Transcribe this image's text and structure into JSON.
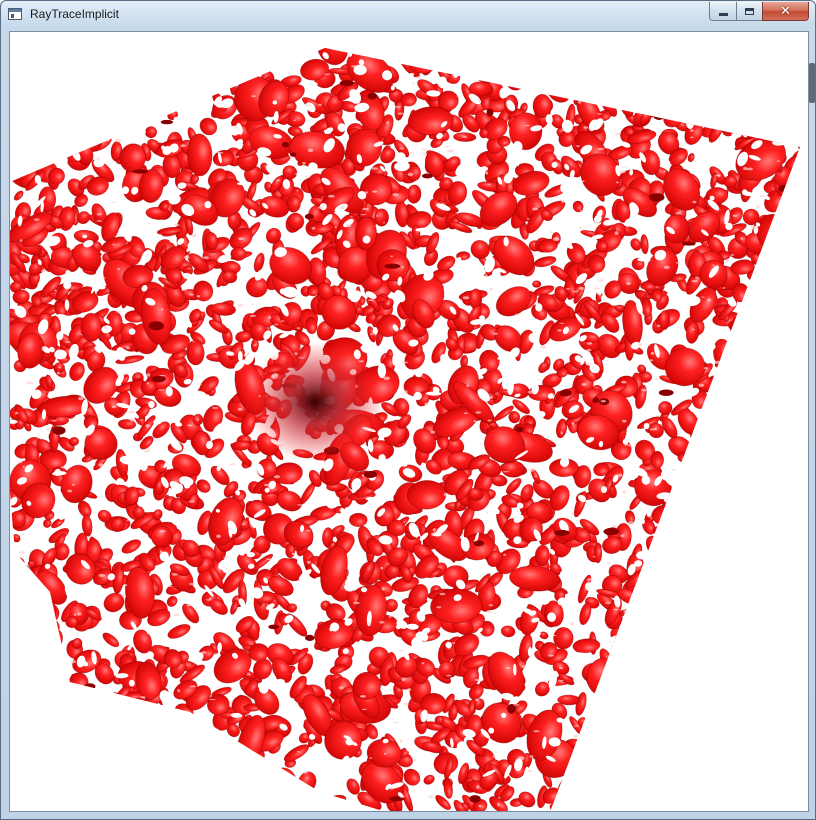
{
  "window": {
    "title": "RayTraceImplicit",
    "icon": "app-window-icon",
    "controls": {
      "minimize_icon": "minimize-icon",
      "maximize_icon": "maximize-icon",
      "close_icon": "close-icon",
      "close_glyph": "✕"
    }
  },
  "scene": {
    "object_color": "#ff1a1a",
    "shadow_color": "#8a0000",
    "highlight_color": "#ffd0d0",
    "background_color": "#ffffff"
  }
}
